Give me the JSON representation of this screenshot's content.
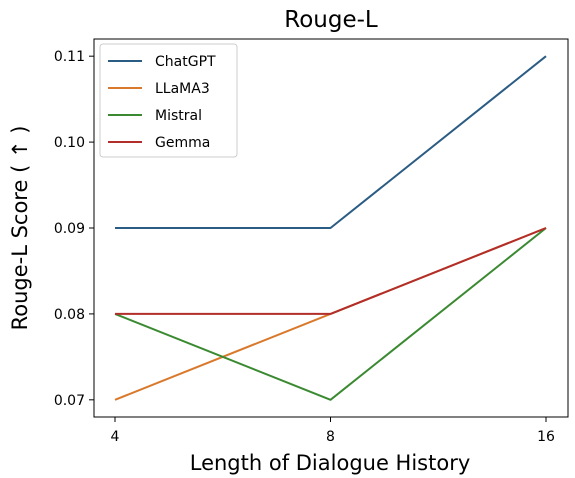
{
  "chart_data": {
    "type": "line",
    "title": "Rouge-L",
    "xlabel": "Length of Dialogue History",
    "ylabel": "Rouge-L Score ( ↑ )",
    "categories": [
      "4",
      "8",
      "16"
    ],
    "yticks": [
      "0.07",
      "0.08",
      "0.09",
      "0.10",
      "0.11"
    ],
    "ylim": [
      0.068,
      0.112
    ],
    "grid": false,
    "legend_position": "top-left",
    "series": [
      {
        "name": "ChatGPT",
        "color": "#2b5c84",
        "values": [
          0.09,
          0.09,
          0.11
        ]
      },
      {
        "name": "LLaMA3",
        "color": "#d9792b",
        "values": [
          0.07,
          0.08,
          0.09
        ]
      },
      {
        "name": "Mistral",
        "color": "#3b8a32",
        "values": [
          0.08,
          0.07,
          0.09
        ]
      },
      {
        "name": "Gemma",
        "color": "#b22e2a",
        "values": [
          0.08,
          0.08,
          0.09
        ]
      }
    ]
  }
}
